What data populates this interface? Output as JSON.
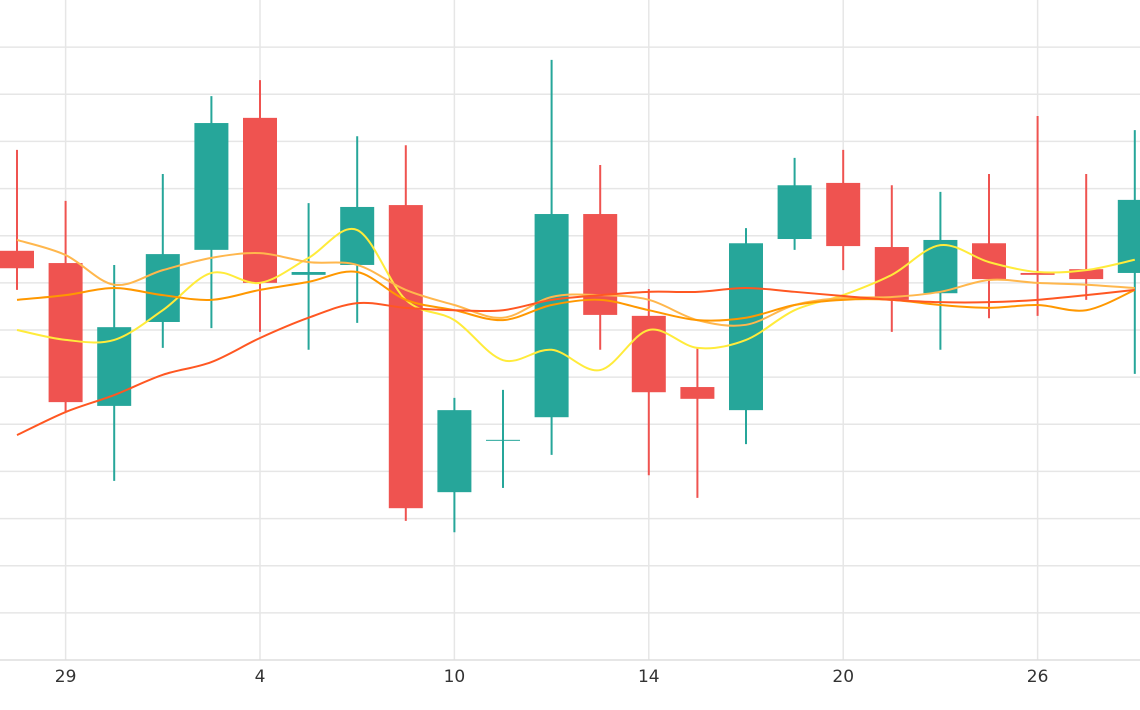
{
  "chart_data": {
    "type": "candlestick",
    "categories": [
      null,
      "29",
      null,
      null,
      null,
      "4",
      null,
      null,
      null,
      "10",
      null,
      null,
      null,
      "14",
      null,
      null,
      null,
      "20",
      null,
      null,
      null,
      "26",
      null,
      null
    ],
    "open": [
      8.68,
      8.42,
      5.39,
      7.17,
      8.7,
      11.5,
      8.17,
      8.38,
      9.65,
      3.56,
      4.67,
      5.15,
      9.46,
      7.3,
      5.79,
      5.3,
      8.93,
      10.12,
      8.76,
      7.78,
      8.84,
      8.21,
      8.29,
      8.21
    ],
    "high": [
      10.82,
      9.74,
      8.38,
      10.31,
      11.96,
      12.3,
      9.69,
      11.11,
      10.92,
      5.56,
      5.73,
      12.73,
      10.5,
      7.87,
      6.62,
      9.16,
      10.65,
      10.82,
      10.07,
      9.93,
      10.31,
      11.54,
      10.31,
      11.24
    ],
    "low": [
      7.85,
      5.26,
      3.8,
      6.62,
      7.04,
      6.96,
      6.58,
      7.15,
      2.95,
      2.71,
      3.65,
      4.35,
      6.58,
      3.92,
      3.44,
      4.58,
      8.7,
      8.27,
      6.96,
      6.58,
      7.25,
      7.3,
      7.64,
      6.07
    ],
    "close": [
      8.31,
      5.47,
      7.06,
      8.61,
      11.39,
      8.0,
      8.23,
      9.61,
      3.22,
      5.3,
      4.67,
      9.46,
      7.32,
      5.68,
      5.54,
      8.84,
      10.07,
      8.78,
      7.64,
      8.91,
      8.08,
      8.17,
      8.08,
      9.76
    ],
    "up_color": "#26a69a",
    "down_color": "#ef5350",
    "series": [
      {
        "color": "#ffeb3b",
        "values": [
          7.0,
          6.79,
          6.79,
          7.42,
          8.21,
          8.0,
          8.53,
          9.12,
          7.64,
          7.21,
          6.36,
          6.58,
          6.15,
          7.0,
          6.62,
          6.79,
          7.42,
          7.74,
          8.17,
          8.8,
          8.44,
          8.23,
          8.27,
          8.49
        ]
      },
      {
        "color": "#ffb74d",
        "values": [
          8.91,
          8.59,
          7.96,
          8.27,
          8.53,
          8.63,
          8.44,
          8.38,
          7.85,
          7.53,
          7.26,
          7.7,
          7.74,
          7.64,
          7.21,
          7.11,
          7.53,
          7.68,
          7.7,
          7.81,
          8.06,
          8.0,
          7.96,
          7.89
        ]
      },
      {
        "color": "#ff9800",
        "values": [
          7.64,
          7.74,
          7.89,
          7.74,
          7.64,
          7.85,
          8.02,
          8.23,
          7.64,
          7.42,
          7.21,
          7.53,
          7.64,
          7.42,
          7.21,
          7.26,
          7.53,
          7.64,
          7.64,
          7.53,
          7.47,
          7.53,
          7.42,
          7.85
        ]
      },
      {
        "color": "#ff5722",
        "values": [
          4.77,
          5.26,
          5.62,
          6.05,
          6.32,
          6.83,
          7.26,
          7.57,
          7.47,
          7.42,
          7.42,
          7.64,
          7.74,
          7.81,
          7.81,
          7.89,
          7.81,
          7.72,
          7.64,
          7.59,
          7.59,
          7.64,
          7.74,
          7.85
        ]
      }
    ],
    "ylim": [
      0,
      14
    ],
    "ygrid": [
      1,
      2,
      3,
      4,
      5,
      6,
      7,
      8,
      9,
      10,
      11,
      12,
      13
    ],
    "xgrid": true
  }
}
